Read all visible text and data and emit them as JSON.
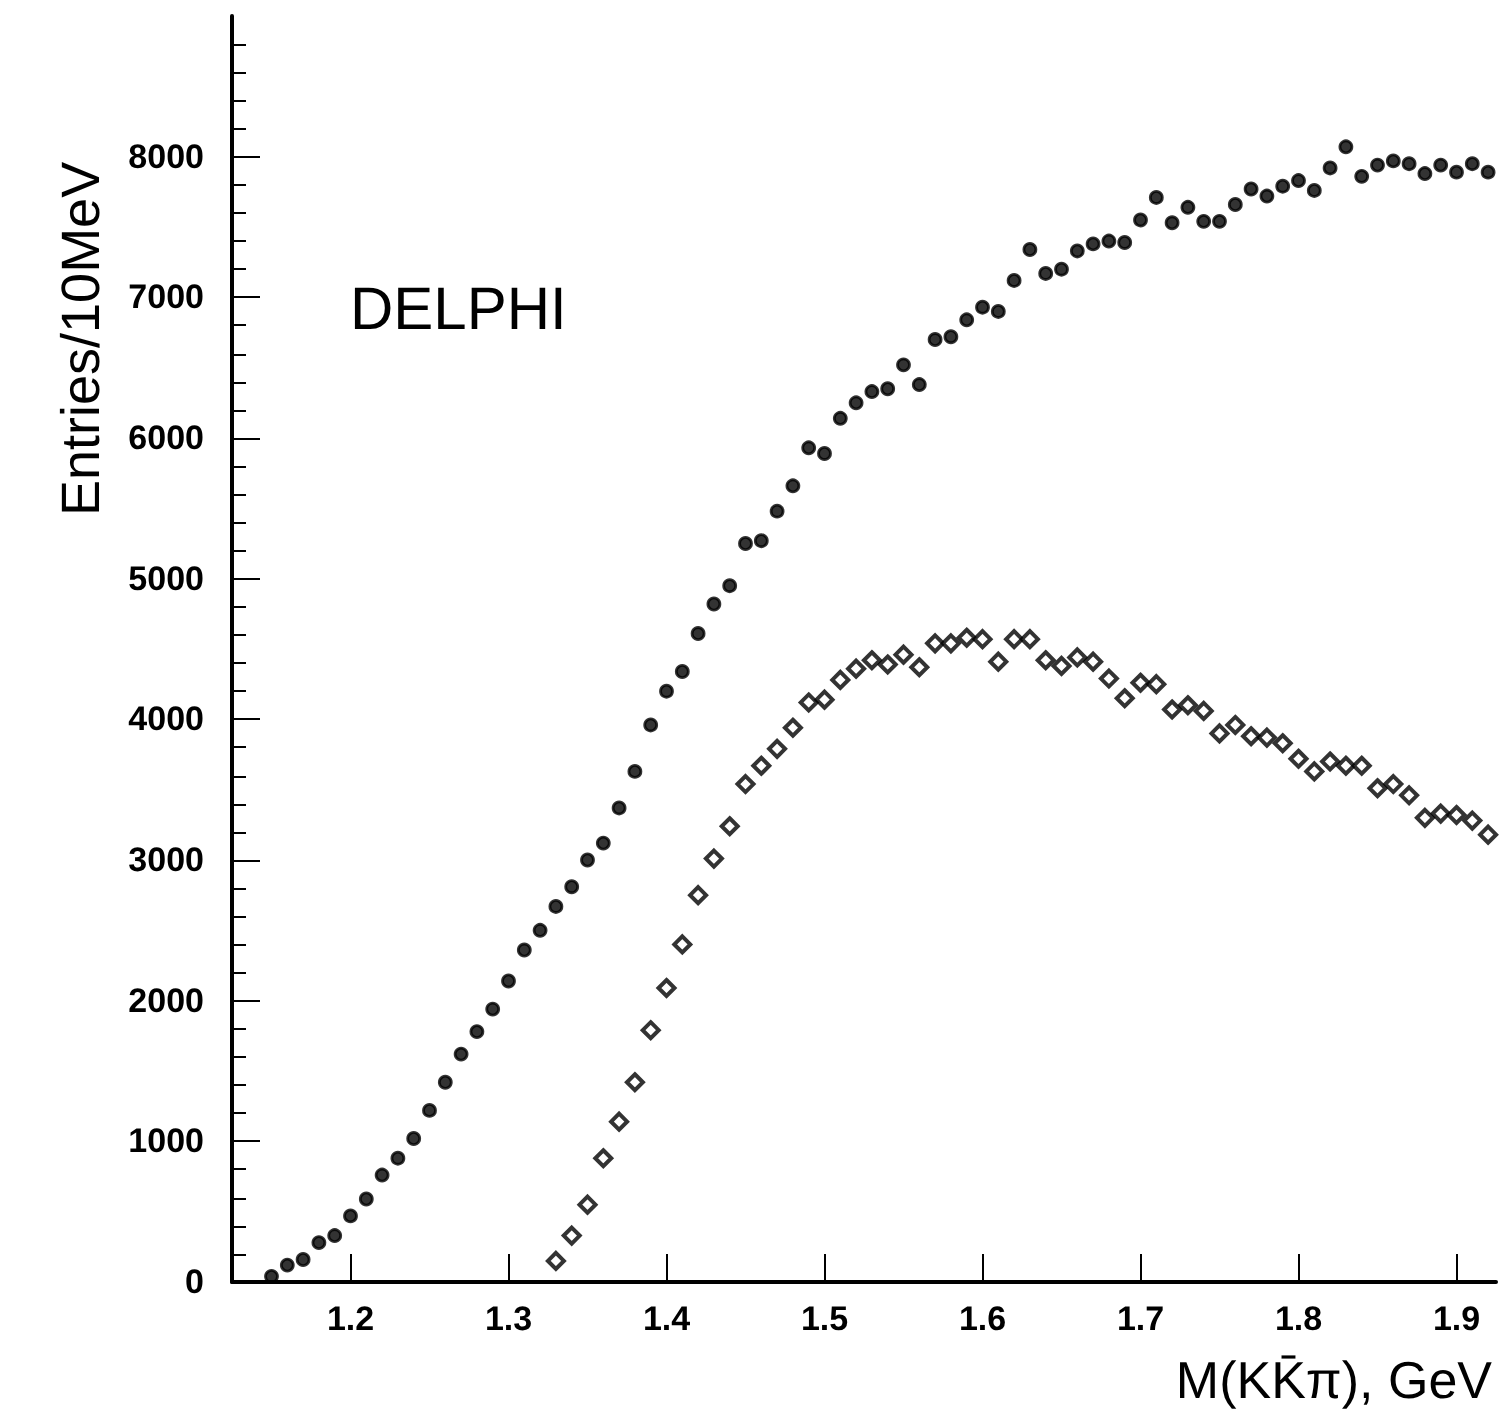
{
  "chart_data": {
    "type": "scatter",
    "xlabel": "M(KK̄π), GeV",
    "ylabel": "Entries/10MeV",
    "annotations": [
      "DELPHI"
    ],
    "xlim": [
      1.125,
      1.925
    ],
    "xticks": [
      1.2,
      1.3,
      1.4,
      1.5,
      1.6,
      1.7,
      1.8,
      1.9
    ],
    "ylim": [
      0,
      9000
    ],
    "yticks": [
      0,
      1000,
      2000,
      3000,
      4000,
      5000,
      6000,
      7000,
      8000
    ],
    "grid": false,
    "series": [
      {
        "color": "#000000",
        "marker": "circle",
        "x": [
          1.15,
          1.16,
          1.17,
          1.18,
          1.19,
          1.2,
          1.21,
          1.22,
          1.23,
          1.24,
          1.25,
          1.26,
          1.27,
          1.28,
          1.29,
          1.3,
          1.31,
          1.32,
          1.33,
          1.34,
          1.35,
          1.36,
          1.37,
          1.38,
          1.39,
          1.4,
          1.41,
          1.42,
          1.43,
          1.44,
          1.45,
          1.46,
          1.47,
          1.48,
          1.49,
          1.5,
          1.51,
          1.52,
          1.53,
          1.54,
          1.55,
          1.56,
          1.57,
          1.58,
          1.59,
          1.6,
          1.61,
          1.62,
          1.63,
          1.64,
          1.65,
          1.66,
          1.67,
          1.68,
          1.69,
          1.7,
          1.71,
          1.72,
          1.73,
          1.74,
          1.75,
          1.76,
          1.77,
          1.78,
          1.79,
          1.8,
          1.81,
          1.82,
          1.83,
          1.84,
          1.85,
          1.86,
          1.87,
          1.88,
          1.89,
          1.9,
          1.91,
          1.92
        ],
        "values": [
          40,
          120,
          160,
          280,
          330,
          470,
          590,
          760,
          880,
          1020,
          1220,
          1420,
          1620,
          1780,
          1940,
          2140,
          2360,
          2500,
          2670,
          2810,
          3000,
          3120,
          3370,
          3630,
          3960,
          4200,
          4340,
          4610,
          4820,
          4950,
          5250,
          5270,
          5480,
          5660,
          5930,
          5890,
          6140,
          6250,
          6330,
          6350,
          6520,
          6380,
          6700,
          6720,
          6840,
          6930,
          6900,
          7120,
          7340,
          7170,
          7200,
          7330,
          7380,
          7400,
          7390,
          7550,
          7710,
          7530,
          7640,
          7540,
          7540,
          7660,
          7770,
          7720,
          7790,
          7830,
          7760,
          7920,
          8070,
          7860,
          7940,
          7970,
          7950,
          7880,
          7940,
          7890,
          7950,
          7890
        ]
      },
      {
        "color": "#000000",
        "marker": "diamond",
        "x": [
          1.33,
          1.34,
          1.35,
          1.36,
          1.37,
          1.38,
          1.39,
          1.4,
          1.41,
          1.42,
          1.43,
          1.44,
          1.45,
          1.46,
          1.47,
          1.48,
          1.49,
          1.5,
          1.51,
          1.52,
          1.53,
          1.54,
          1.55,
          1.56,
          1.57,
          1.58,
          1.59,
          1.6,
          1.61,
          1.62,
          1.63,
          1.64,
          1.65,
          1.66,
          1.67,
          1.68,
          1.69,
          1.7,
          1.71,
          1.72,
          1.73,
          1.74,
          1.75,
          1.76,
          1.77,
          1.78,
          1.79,
          1.8,
          1.81,
          1.82,
          1.83,
          1.84,
          1.85,
          1.86,
          1.87,
          1.88,
          1.89,
          1.9,
          1.91,
          1.92
        ],
        "values": [
          150,
          330,
          550,
          880,
          1140,
          1420,
          1790,
          2090,
          2400,
          2750,
          3010,
          3240,
          3540,
          3670,
          3790,
          3940,
          4120,
          4140,
          4280,
          4360,
          4420,
          4390,
          4460,
          4370,
          4540,
          4540,
          4580,
          4570,
          4410,
          4570,
          4570,
          4420,
          4380,
          4440,
          4410,
          4290,
          4150,
          4260,
          4250,
          4070,
          4100,
          4060,
          3900,
          3960,
          3880,
          3870,
          3830,
          3720,
          3630,
          3700,
          3670,
          3670,
          3510,
          3540,
          3460,
          3300,
          3330,
          3320,
          3280,
          3180
        ]
      }
    ]
  }
}
